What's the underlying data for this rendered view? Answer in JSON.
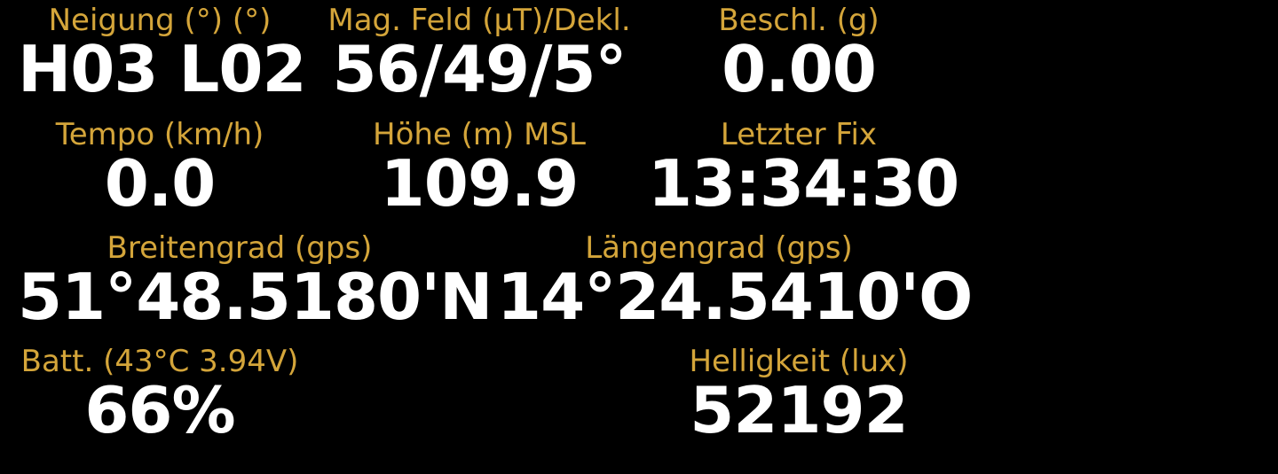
{
  "colors": {
    "background": "#000000",
    "label": "#d4a53a",
    "value": "#ffffff"
  },
  "readings": {
    "neigung": {
      "label": "Neigung (°) (°)",
      "value": "H03 L02"
    },
    "mag_feld": {
      "label": "Mag. Feld (µT)/Dekl.",
      "value": "56/49/5°"
    },
    "beschl": {
      "label": "Beschl. (g)",
      "value": "0.00"
    },
    "tempo": {
      "label": "Tempo (km/h)",
      "value": "0.0"
    },
    "hoehe": {
      "label": "Höhe (m) MSL",
      "value": "109.9"
    },
    "letzter_fix": {
      "label": "Letzter Fix",
      "value": "13:34:30"
    },
    "breitengrad": {
      "label": "Breitengrad (gps)",
      "value": "51°48.5180'N"
    },
    "laengengrad": {
      "label": "Längengrad (gps)",
      "value": "14°24.5410'O"
    },
    "batt": {
      "label": "Batt. (43°C 3.94V)",
      "value": "66%"
    },
    "helligkeit": {
      "label": "Helligkeit (lux)",
      "value": "52192"
    }
  }
}
